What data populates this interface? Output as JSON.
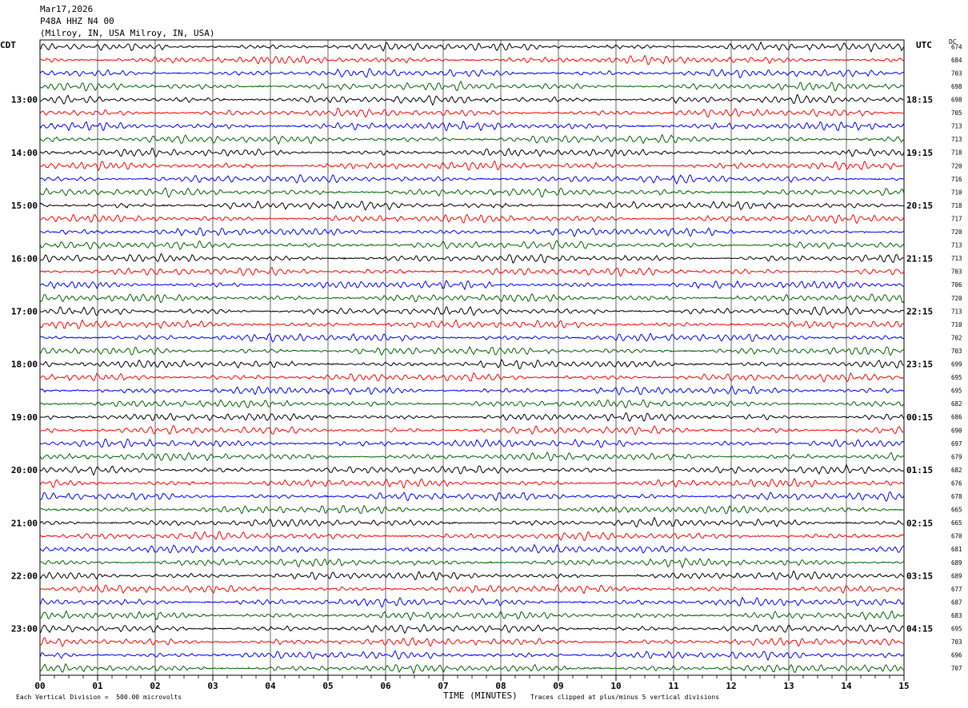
{
  "header": {
    "date": "Mar17,2026",
    "station": "P48A HHZ N4 00",
    "location": "(Milroy, IN, USA Milroy, IN, USA)"
  },
  "labels": {
    "left_tz": "CDT",
    "right_tz": "UTC",
    "dc_header": "DC"
  },
  "footer": {
    "scale_note": "Each Vertical Division =  500.00 microvolts",
    "clip_note": "Traces clipped at plus/minus 5 vertical divisions"
  },
  "chart_data": {
    "type": "line",
    "xlabel": "TIME (MINUTES)",
    "xlim": [
      0,
      15
    ],
    "x_ticks": [
      "00",
      "01",
      "02",
      "03",
      "04",
      "05",
      "06",
      "07",
      "08",
      "09",
      "10",
      "11",
      "12",
      "13",
      "14",
      "15"
    ],
    "trace_colors": [
      "#000000",
      "#ff0000",
      "#0000ff",
      "#006400"
    ],
    "rows_per_hour": 4,
    "left_hour_labels": [
      "13:00",
      "14:00",
      "15:00",
      "16:00",
      "17:00",
      "18:00",
      "19:00",
      "20:00",
      "21:00",
      "22:00",
      "23:00"
    ],
    "right_hour_labels": [
      "18:15",
      "19:15",
      "20:15",
      "21:15",
      "22:15",
      "23:15",
      "00:15",
      "01:15",
      "02:15",
      "03:15",
      "04:15"
    ],
    "dc_offsets": [
      674,
      684,
      703,
      698,
      698,
      705,
      713,
      713,
      718,
      720,
      716,
      710,
      718,
      717,
      720,
      713,
      713,
      703,
      706,
      720,
      713,
      710,
      702,
      703,
      699,
      695,
      695,
      682,
      686,
      690,
      697,
      679,
      682,
      676,
      678,
      665,
      665,
      670,
      681,
      689,
      689,
      677,
      687,
      683,
      695,
      703,
      696,
      707
    ]
  }
}
